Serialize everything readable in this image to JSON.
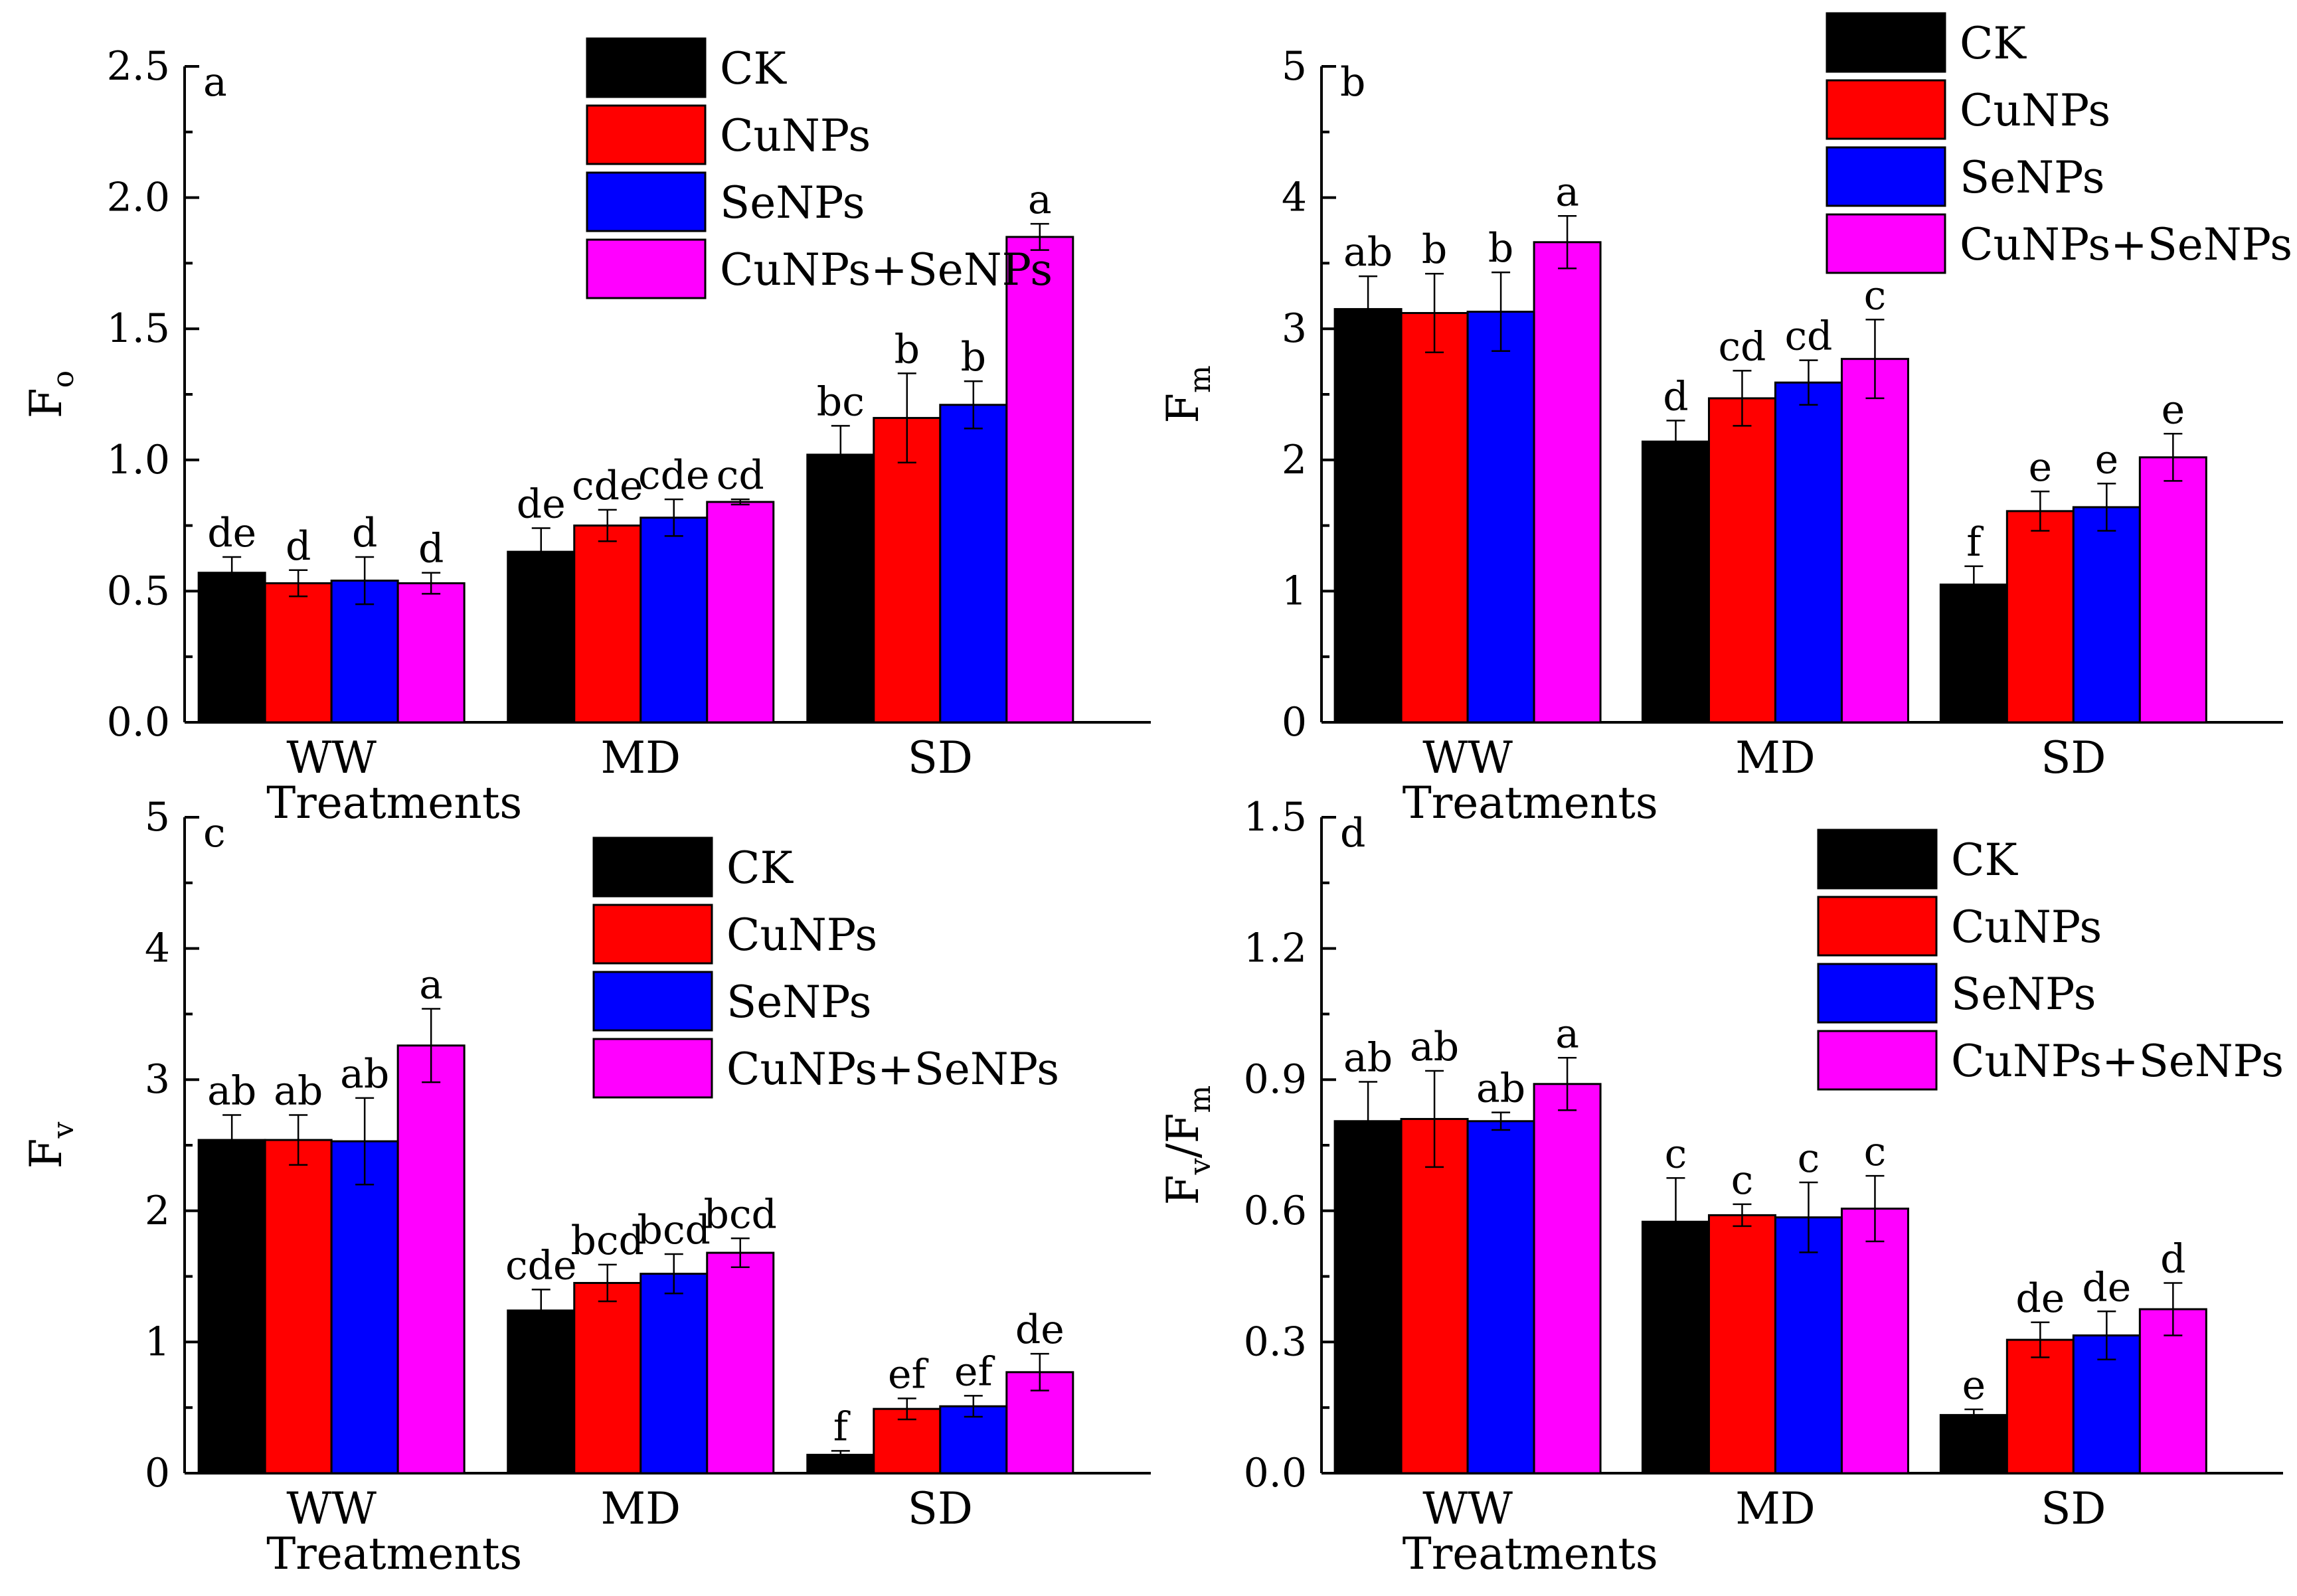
{
  "colors": {
    "CK": "#000000",
    "CuNPs": "#ff0000",
    "SeNPs": "#0000ff",
    "CuNPs+SeNPs": "#ff00ff"
  },
  "chart_data": [
    {
      "type": "bar",
      "panel": "a",
      "ylabel_main": "F",
      "ylabel_sub": "o",
      "xlabel": "Treatments",
      "categories": [
        "WW",
        "MD",
        "SD"
      ],
      "ylim": [
        0,
        2.5
      ],
      "yticks": [
        "0.0",
        "0.5",
        "1.0",
        "1.5",
        "2.0",
        "2.5"
      ],
      "legend": [
        "CK",
        "CuNPs",
        "SeNPs",
        "CuNPs+SeNPs"
      ],
      "series": [
        {
          "name": "CK",
          "values": [
            0.57,
            0.65,
            1.02
          ],
          "errors": [
            0.06,
            0.09,
            0.11
          ],
          "labels": [
            "de",
            "de",
            "bc"
          ]
        },
        {
          "name": "CuNPs",
          "values": [
            0.53,
            0.75,
            1.16
          ],
          "errors": [
            0.05,
            0.06,
            0.17
          ],
          "labels": [
            "d",
            "cde",
            "b"
          ]
        },
        {
          "name": "SeNPs",
          "values": [
            0.54,
            0.78,
            1.21
          ],
          "errors": [
            0.09,
            0.07,
            0.09
          ],
          "labels": [
            "d",
            "cde",
            "b"
          ]
        },
        {
          "name": "CuNPs+SeNPs",
          "values": [
            0.53,
            0.84,
            1.85
          ],
          "errors": [
            0.04,
            0.01,
            0.05
          ],
          "labels": [
            "d",
            "cd",
            "a"
          ]
        }
      ]
    },
    {
      "type": "bar",
      "panel": "b",
      "ylabel_main": "F",
      "ylabel_sub": "m",
      "xlabel": "Treatments",
      "categories": [
        "WW",
        "MD",
        "SD"
      ],
      "ylim": [
        0,
        5
      ],
      "yticks": [
        "0",
        "1",
        "2",
        "3",
        "4",
        "5"
      ],
      "legend": [
        "CK",
        "CuNPs",
        "SeNPs",
        "CuNPs+SeNPs"
      ],
      "series": [
        {
          "name": "CK",
          "values": [
            3.15,
            2.14,
            1.05
          ],
          "errors": [
            0.25,
            0.16,
            0.14
          ],
          "labels": [
            "ab",
            "d",
            "f"
          ]
        },
        {
          "name": "CuNPs",
          "values": [
            3.12,
            2.47,
            1.61
          ],
          "errors": [
            0.3,
            0.21,
            0.15
          ],
          "labels": [
            "b",
            "cd",
            "e"
          ]
        },
        {
          "name": "SeNPs",
          "values": [
            3.13,
            2.59,
            1.64
          ],
          "errors": [
            0.3,
            0.17,
            0.18
          ],
          "labels": [
            "b",
            "cd",
            "e"
          ]
        },
        {
          "name": "CuNPs+SeNPs",
          "values": [
            3.66,
            2.77,
            2.02
          ],
          "errors": [
            0.2,
            0.3,
            0.18
          ],
          "labels": [
            "a",
            "c",
            "e"
          ]
        }
      ]
    },
    {
      "type": "bar",
      "panel": "c",
      "ylabel_main": "F",
      "ylabel_sub": "v",
      "xlabel": "Treatments",
      "categories": [
        "WW",
        "MD",
        "SD"
      ],
      "ylim": [
        0,
        5
      ],
      "yticks": [
        "0",
        "1",
        "2",
        "3",
        "4",
        "5"
      ],
      "legend": [
        "CK",
        "CuNPs",
        "SeNPs",
        "CuNPs+SeNPs"
      ],
      "series": [
        {
          "name": "CK",
          "values": [
            2.54,
            1.24,
            0.14
          ],
          "errors": [
            0.19,
            0.16,
            0.03
          ],
          "labels": [
            "ab",
            "cde",
            "f"
          ]
        },
        {
          "name": "CuNPs",
          "values": [
            2.54,
            1.45,
            0.49
          ],
          "errors": [
            0.19,
            0.14,
            0.08
          ],
          "labels": [
            "ab",
            "bcd",
            "ef"
          ]
        },
        {
          "name": "SeNPs",
          "values": [
            2.53,
            1.52,
            0.51
          ],
          "errors": [
            0.33,
            0.15,
            0.08
          ],
          "labels": [
            "ab",
            "bcd",
            "ef"
          ]
        },
        {
          "name": "CuNPs+SeNPs",
          "values": [
            3.26,
            1.68,
            0.77
          ],
          "errors": [
            0.28,
            0.11,
            0.14
          ],
          "labels": [
            "a",
            "bcd",
            "de"
          ]
        }
      ]
    },
    {
      "type": "bar",
      "panel": "d",
      "ylabel_main": "F",
      "ylabel_sub": "v",
      "ylabel_mid": "/F",
      "ylabel_sub2": "m",
      "xlabel": "Treatments",
      "categories": [
        "WW",
        "MD",
        "SD"
      ],
      "ylim": [
        0,
        1.5
      ],
      "yticks": [
        "0.0",
        "0.3",
        "0.6",
        "0.9",
        "1.2",
        "1.5"
      ],
      "legend": [
        "CK",
        "CuNPs",
        "SeNPs",
        "CuNPs+SeNPs"
      ],
      "series": [
        {
          "name": "CK",
          "values": [
            0.805,
            0.575,
            0.133
          ],
          "errors": [
            0.09,
            0.1,
            0.013
          ],
          "labels": [
            "ab",
            "c",
            "e"
          ]
        },
        {
          "name": "CuNPs",
          "values": [
            0.81,
            0.59,
            0.305
          ],
          "errors": [
            0.11,
            0.025,
            0.04
          ],
          "labels": [
            "ab",
            "c",
            "de"
          ]
        },
        {
          "name": "SeNPs",
          "values": [
            0.805,
            0.585,
            0.315
          ],
          "errors": [
            0.02,
            0.08,
            0.055
          ],
          "labels": [
            "ab",
            "c",
            "de"
          ]
        },
        {
          "name": "CuNPs+SeNPs",
          "values": [
            0.89,
            0.605,
            0.375
          ],
          "errors": [
            0.06,
            0.075,
            0.06
          ],
          "labels": [
            "a",
            "c",
            "d"
          ]
        }
      ]
    }
  ]
}
